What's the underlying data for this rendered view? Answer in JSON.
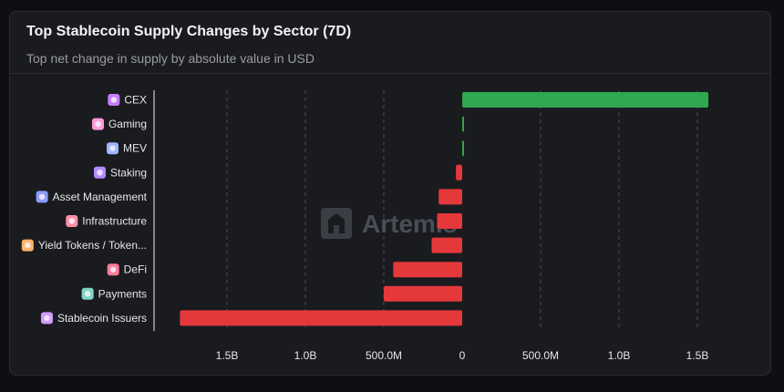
{
  "header": {
    "title": "Top Stablecoin Supply Changes by Sector (7D)",
    "subtitle": "Top net change in supply by absolute value in USD"
  },
  "watermark": {
    "text": "Artemis"
  },
  "colors": {
    "positive": "#2fa84f",
    "negative": "#e5383b",
    "background": "#1a1b1f",
    "grid": "#4b4e55"
  },
  "chart_data": {
    "type": "bar",
    "orientation": "horizontal",
    "title": "Top Stablecoin Supply Changes by Sector (7D)",
    "subtitle": "Top net change in supply by absolute value in USD",
    "categories": [
      "CEX",
      "Gaming",
      "MEV",
      "Staking",
      "Asset Management",
      "Infrastructure",
      "Yield Tokens / Token...",
      "DeFi",
      "Payments",
      "Stablecoin Issuers"
    ],
    "category_icons": [
      "cex-icon",
      "gaming-icon",
      "mev-icon",
      "staking-icon",
      "asset-management-icon",
      "infrastructure-icon",
      "yield-tokens-icon",
      "defi-icon",
      "payments-icon",
      "stablecoin-issuers-icon"
    ],
    "values": [
      1570000000,
      10000000,
      10000000,
      -40000000,
      -150000000,
      -160000000,
      -195000000,
      -440000000,
      -500000000,
      -1800000000
    ],
    "xlim": [
      -1950000000,
      1950000000
    ],
    "ticks": [
      -1500000000,
      -1000000000,
      -500000000,
      0,
      500000000,
      1000000000,
      1500000000
    ],
    "tick_labels": [
      "1.5B",
      "1.0B",
      "500.0M",
      "0",
      "500.0M",
      "1.0B",
      "1.5B"
    ],
    "xlabel": "",
    "ylabel": "",
    "grid": true,
    "legend": "none"
  }
}
